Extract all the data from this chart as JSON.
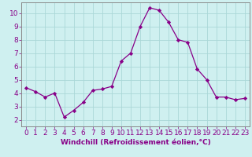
{
  "x": [
    0,
    1,
    2,
    3,
    4,
    5,
    6,
    7,
    8,
    9,
    10,
    11,
    12,
    13,
    14,
    15,
    16,
    17,
    18,
    19,
    20,
    21,
    22,
    23
  ],
  "y": [
    4.4,
    4.1,
    3.7,
    4.0,
    2.2,
    2.7,
    3.3,
    4.2,
    4.3,
    4.5,
    6.4,
    7.0,
    9.0,
    10.4,
    10.2,
    9.3,
    8.0,
    7.8,
    5.8,
    5.0,
    3.7,
    3.7,
    3.5,
    3.6
  ],
  "line_color": "#880088",
  "marker": "D",
  "marker_size": 2.2,
  "bg_color": "#cff0f0",
  "grid_color": "#aad8d8",
  "xlabel": "Windchill (Refroidissement éolien,°C)",
  "xlim": [
    -0.5,
    23.5
  ],
  "ylim": [
    1.5,
    10.8
  ],
  "xticks": [
    0,
    1,
    2,
    3,
    4,
    5,
    6,
    7,
    8,
    9,
    10,
    11,
    12,
    13,
    14,
    15,
    16,
    17,
    18,
    19,
    20,
    21,
    22,
    23
  ],
  "yticks": [
    2,
    3,
    4,
    5,
    6,
    7,
    8,
    9,
    10
  ],
  "xlabel_fontsize": 6.5,
  "tick_fontsize": 6.5,
  "tick_color": "#880088",
  "axis_color": "#888888",
  "spine_color": "#888888"
}
